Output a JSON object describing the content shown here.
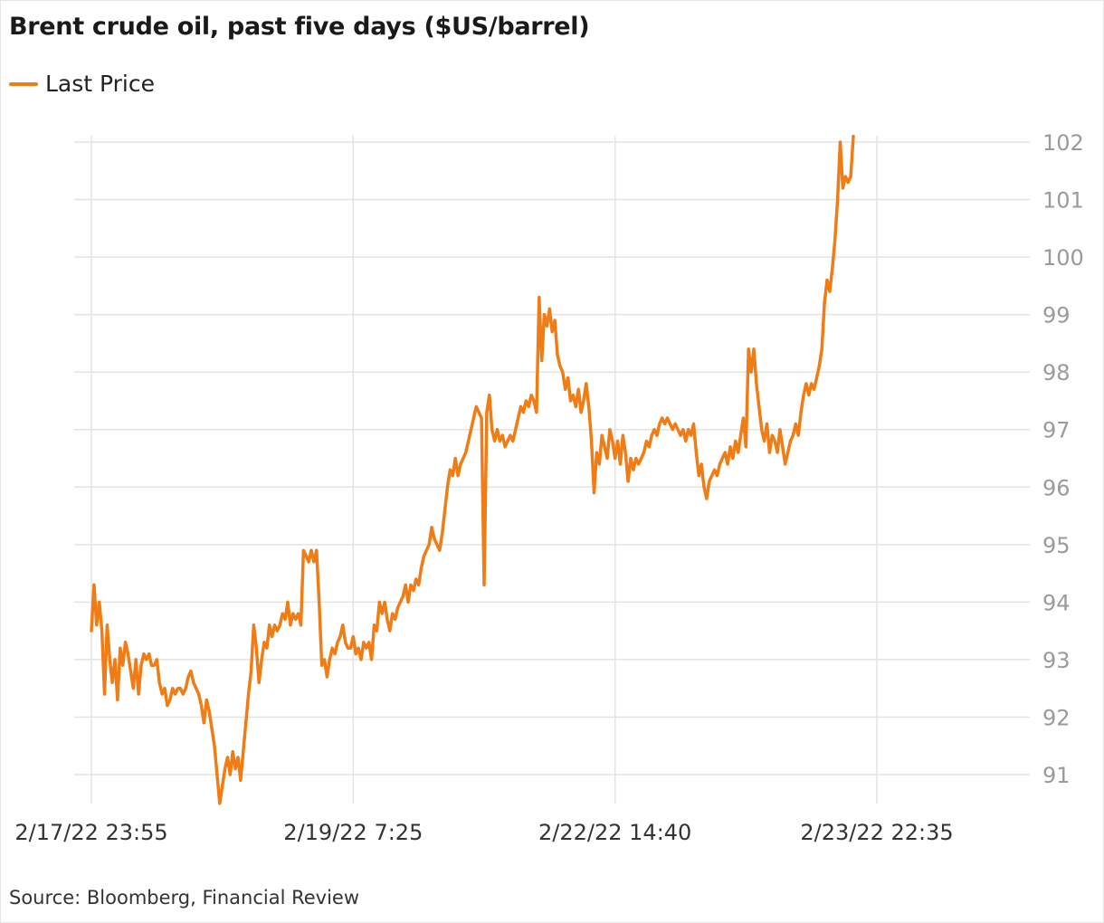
{
  "title": "Brent crude oil, past five days ($US/barrel)",
  "source": "Source: Bloomberg, Financial Review",
  "colors": {
    "line": "#f07c16",
    "grid": "#e3e3e3",
    "axis_text": "#9a9a9a"
  },
  "chart_data": {
    "type": "line",
    "title": "Brent crude oil, past five days ($US/barrel)",
    "xlabel": "",
    "ylabel": "",
    "ylim": [
      90.5,
      102.1
    ],
    "y_ticks": [
      91,
      92,
      93,
      94,
      95,
      96,
      97,
      98,
      99,
      100,
      101,
      102
    ],
    "x_ticks": [
      "2/17/22 23:55",
      "2/19/22 7:25",
      "2/22/22 14:40",
      "2/23/22 22:35"
    ],
    "x_tick_index": [
      0,
      100,
      200,
      300
    ],
    "x_last_index": 318,
    "grid": true,
    "y_axis_side": "right",
    "legend_position": "top-left",
    "series": [
      {
        "name": "Last Price",
        "color": "#f07c16",
        "points": [
          [
            0,
            93.5
          ],
          [
            1,
            94.3
          ],
          [
            2,
            93.6
          ],
          [
            3,
            94.0
          ],
          [
            4,
            93.5
          ],
          [
            5,
            92.4
          ],
          [
            6,
            93.6
          ],
          [
            7,
            93.0
          ],
          [
            8,
            92.6
          ],
          [
            9,
            93.0
          ],
          [
            10,
            92.3
          ],
          [
            11,
            93.2
          ],
          [
            12,
            92.9
          ],
          [
            13,
            93.3
          ],
          [
            14,
            93.1
          ],
          [
            15,
            92.8
          ],
          [
            16,
            92.5
          ],
          [
            17,
            93.0
          ],
          [
            18,
            92.4
          ],
          [
            19,
            92.9
          ],
          [
            20,
            93.1
          ],
          [
            21,
            93.0
          ],
          [
            22,
            93.1
          ],
          [
            23,
            92.9
          ],
          [
            24,
            92.9
          ],
          [
            25,
            93.0
          ],
          [
            26,
            92.6
          ],
          [
            27,
            92.4
          ],
          [
            28,
            92.5
          ],
          [
            29,
            92.2
          ],
          [
            30,
            92.3
          ],
          [
            31,
            92.5
          ],
          [
            32,
            92.4
          ],
          [
            33,
            92.5
          ],
          [
            34,
            92.5
          ],
          [
            35,
            92.4
          ],
          [
            36,
            92.5
          ],
          [
            37,
            92.7
          ],
          [
            38,
            92.8
          ],
          [
            39,
            92.6
          ],
          [
            40,
            92.5
          ],
          [
            41,
            92.4
          ],
          [
            42,
            92.2
          ],
          [
            43,
            91.9
          ],
          [
            44,
            92.3
          ],
          [
            45,
            92.1
          ],
          [
            46,
            91.8
          ],
          [
            47,
            91.5
          ],
          [
            48,
            91.0
          ],
          [
            49,
            90.5
          ],
          [
            50,
            90.8
          ],
          [
            51,
            91.1
          ],
          [
            52,
            91.3
          ],
          [
            53,
            91.0
          ],
          [
            54,
            91.4
          ],
          [
            55,
            91.1
          ],
          [
            56,
            91.3
          ],
          [
            57,
            90.9
          ],
          [
            58,
            91.4
          ],
          [
            59,
            91.9
          ],
          [
            60,
            92.4
          ],
          [
            61,
            92.8
          ],
          [
            62,
            93.6
          ],
          [
            63,
            93.2
          ],
          [
            64,
            92.6
          ],
          [
            65,
            93.0
          ],
          [
            66,
            93.3
          ],
          [
            67,
            93.2
          ],
          [
            68,
            93.6
          ],
          [
            69,
            93.4
          ],
          [
            70,
            93.6
          ],
          [
            71,
            93.5
          ],
          [
            72,
            93.6
          ],
          [
            73,
            93.8
          ],
          [
            74,
            93.7
          ],
          [
            75,
            94.0
          ],
          [
            76,
            93.6
          ],
          [
            77,
            93.8
          ],
          [
            78,
            93.7
          ],
          [
            79,
            93.8
          ],
          [
            80,
            93.6
          ],
          [
            81,
            94.9
          ],
          [
            82,
            94.8
          ],
          [
            83,
            94.7
          ],
          [
            84,
            94.9
          ],
          [
            85,
            94.7
          ],
          [
            86,
            94.9
          ],
          [
            87,
            94.0
          ],
          [
            88,
            92.9
          ],
          [
            89,
            93.0
          ],
          [
            90,
            92.7
          ],
          [
            91,
            93.0
          ],
          [
            92,
            93.2
          ],
          [
            93,
            93.1
          ],
          [
            94,
            93.3
          ],
          [
            95,
            93.4
          ],
          [
            96,
            93.6
          ],
          [
            97,
            93.3
          ],
          [
            98,
            93.2
          ],
          [
            99,
            93.2
          ],
          [
            100,
            93.4
          ],
          [
            101,
            93.1
          ],
          [
            102,
            93.2
          ],
          [
            103,
            93.0
          ],
          [
            104,
            93.3
          ],
          [
            105,
            93.2
          ],
          [
            106,
            93.3
          ],
          [
            107,
            93.0
          ],
          [
            108,
            93.6
          ],
          [
            109,
            93.5
          ],
          [
            110,
            94.0
          ],
          [
            111,
            93.8
          ],
          [
            112,
            94.0
          ],
          [
            113,
            93.7
          ],
          [
            114,
            93.5
          ],
          [
            115,
            93.8
          ],
          [
            116,
            93.7
          ],
          [
            117,
            93.9
          ],
          [
            118,
            94.0
          ],
          [
            119,
            94.1
          ],
          [
            120,
            94.3
          ],
          [
            121,
            94.0
          ],
          [
            122,
            94.3
          ],
          [
            123,
            94.2
          ],
          [
            124,
            94.4
          ],
          [
            125,
            94.3
          ],
          [
            126,
            94.6
          ],
          [
            127,
            94.8
          ],
          [
            128,
            94.9
          ],
          [
            129,
            95.0
          ],
          [
            130,
            95.3
          ],
          [
            131,
            95.1
          ],
          [
            132,
            95.0
          ],
          [
            133,
            94.9
          ],
          [
            134,
            95.2
          ],
          [
            135,
            95.6
          ],
          [
            136,
            96.0
          ],
          [
            137,
            96.3
          ],
          [
            138,
            96.2
          ],
          [
            139,
            96.5
          ],
          [
            140,
            96.2
          ],
          [
            141,
            96.4
          ],
          [
            142,
            96.5
          ],
          [
            143,
            96.6
          ],
          [
            144,
            96.8
          ],
          [
            145,
            97.0
          ],
          [
            146,
            97.2
          ],
          [
            147,
            97.4
          ],
          [
            148,
            97.3
          ],
          [
            149,
            97.2
          ],
          [
            150,
            94.3
          ],
          [
            151,
            97.3
          ],
          [
            152,
            97.6
          ],
          [
            153,
            97.0
          ],
          [
            154,
            96.8
          ],
          [
            155,
            97.0
          ],
          [
            156,
            96.8
          ],
          [
            157,
            96.9
          ],
          [
            158,
            96.7
          ],
          [
            159,
            96.8
          ],
          [
            160,
            96.9
          ],
          [
            161,
            96.8
          ],
          [
            162,
            97.0
          ],
          [
            163,
            97.2
          ],
          [
            164,
            97.4
          ],
          [
            165,
            97.3
          ],
          [
            166,
            97.5
          ],
          [
            167,
            97.4
          ],
          [
            168,
            97.6
          ],
          [
            169,
            97.5
          ],
          [
            170,
            97.3
          ],
          [
            171,
            99.3
          ],
          [
            172,
            98.2
          ],
          [
            173,
            99.0
          ],
          [
            174,
            98.8
          ],
          [
            175,
            99.1
          ],
          [
            176,
            98.7
          ],
          [
            177,
            98.9
          ],
          [
            178,
            98.3
          ],
          [
            179,
            98.1
          ],
          [
            180,
            98.0
          ],
          [
            181,
            97.7
          ],
          [
            182,
            97.9
          ],
          [
            183,
            97.5
          ],
          [
            184,
            97.6
          ],
          [
            185,
            97.4
          ],
          [
            186,
            97.7
          ],
          [
            187,
            97.3
          ],
          [
            188,
            97.5
          ],
          [
            189,
            97.8
          ],
          [
            190,
            97.4
          ],
          [
            191,
            96.8
          ],
          [
            192,
            95.9
          ],
          [
            193,
            96.6
          ],
          [
            194,
            96.4
          ],
          [
            195,
            96.9
          ],
          [
            196,
            96.7
          ],
          [
            197,
            96.5
          ],
          [
            198,
            97.0
          ],
          [
            199,
            96.8
          ],
          [
            200,
            96.5
          ],
          [
            201,
            96.8
          ],
          [
            202,
            96.4
          ],
          [
            203,
            96.9
          ],
          [
            204,
            96.6
          ],
          [
            205,
            96.1
          ],
          [
            206,
            96.5
          ],
          [
            207,
            96.3
          ],
          [
            208,
            96.5
          ],
          [
            209,
            96.4
          ],
          [
            210,
            96.5
          ],
          [
            211,
            96.6
          ],
          [
            212,
            96.8
          ],
          [
            213,
            96.7
          ],
          [
            214,
            96.9
          ],
          [
            215,
            97.0
          ],
          [
            216,
            96.9
          ],
          [
            217,
            97.1
          ],
          [
            218,
            97.2
          ],
          [
            219,
            97.1
          ],
          [
            220,
            97.2
          ],
          [
            221,
            97.1
          ],
          [
            222,
            97.0
          ],
          [
            223,
            97.1
          ],
          [
            224,
            97.0
          ],
          [
            225,
            96.9
          ],
          [
            226,
            97.0
          ],
          [
            227,
            96.8
          ],
          [
            228,
            97.0
          ],
          [
            229,
            96.9
          ],
          [
            230,
            97.1
          ],
          [
            231,
            96.6
          ],
          [
            232,
            96.2
          ],
          [
            233,
            96.4
          ],
          [
            234,
            96.0
          ],
          [
            235,
            95.8
          ],
          [
            236,
            96.1
          ],
          [
            237,
            96.2
          ],
          [
            238,
            96.3
          ],
          [
            239,
            96.2
          ],
          [
            240,
            96.4
          ],
          [
            241,
            96.5
          ],
          [
            242,
            96.6
          ],
          [
            243,
            96.4
          ],
          [
            244,
            96.7
          ],
          [
            245,
            96.5
          ],
          [
            246,
            96.8
          ],
          [
            247,
            96.6
          ],
          [
            248,
            96.9
          ],
          [
            249,
            97.2
          ],
          [
            250,
            96.7
          ],
          [
            251,
            98.4
          ],
          [
            252,
            98.0
          ],
          [
            253,
            98.4
          ],
          [
            254,
            97.8
          ],
          [
            255,
            97.4
          ],
          [
            256,
            97.0
          ],
          [
            257,
            96.8
          ],
          [
            258,
            97.1
          ],
          [
            259,
            96.6
          ],
          [
            260,
            96.9
          ],
          [
            261,
            96.8
          ],
          [
            262,
            96.6
          ],
          [
            263,
            97.0
          ],
          [
            264,
            96.7
          ],
          [
            265,
            96.4
          ],
          [
            266,
            96.6
          ],
          [
            267,
            96.8
          ],
          [
            268,
            96.9
          ],
          [
            269,
            97.1
          ],
          [
            270,
            96.9
          ],
          [
            271,
            97.3
          ],
          [
            272,
            97.6
          ],
          [
            273,
            97.8
          ],
          [
            274,
            97.6
          ],
          [
            275,
            97.8
          ],
          [
            276,
            97.7
          ],
          [
            277,
            97.9
          ],
          [
            278,
            98.1
          ],
          [
            279,
            98.4
          ],
          [
            280,
            99.2
          ],
          [
            281,
            99.6
          ],
          [
            282,
            99.4
          ],
          [
            283,
            99.8
          ],
          [
            284,
            100.3
          ],
          [
            285,
            101.0
          ],
          [
            286,
            102.0
          ],
          [
            287,
            101.2
          ],
          [
            288,
            101.4
          ],
          [
            289,
            101.3
          ],
          [
            290,
            101.4
          ],
          [
            291,
            102.1
          ]
        ]
      }
    ]
  }
}
